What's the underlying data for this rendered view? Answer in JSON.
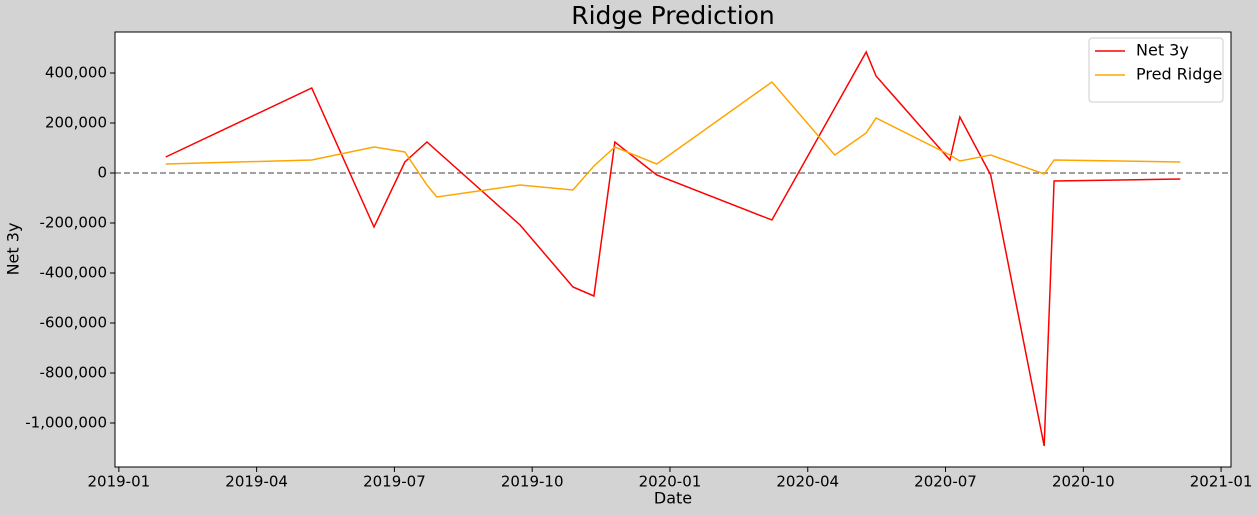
{
  "chart_data": {
    "type": "line",
    "title": "Ridge Prediction",
    "x_label": "Date",
    "y_label": "Net 3y",
    "xlim": [
      2018.993,
      2021.018
    ],
    "xticks": [
      {
        "value": 2019.0,
        "label": "2019-01"
      },
      {
        "value": 2019.25,
        "label": "2019-04"
      },
      {
        "value": 2019.5,
        "label": "2019-07"
      },
      {
        "value": 2019.75,
        "label": "2019-10"
      },
      {
        "value": 2020.0,
        "label": "2020-01"
      },
      {
        "value": 2020.25,
        "label": "2020-04"
      },
      {
        "value": 2020.5,
        "label": "2020-07"
      },
      {
        "value": 2020.75,
        "label": "2020-10"
      },
      {
        "value": 2021.0,
        "label": "2021-01"
      }
    ],
    "ylim": [
      -1176000,
      564000
    ],
    "yticks": [
      {
        "value": -1000000,
        "label": "-1,000,000"
      },
      {
        "value": -800000,
        "label": "-800,000"
      },
      {
        "value": -600000,
        "label": "-600,000"
      },
      {
        "value": -400000,
        "label": "-400,000"
      },
      {
        "value": -200000,
        "label": "-200,000"
      },
      0,
      {
        "value": 200000,
        "label": "200,000"
      },
      {
        "value": 400000,
        "label": "400,000"
      }
    ],
    "hline": 0,
    "hline_color": "#808080",
    "legend": "upper right",
    "series": [
      {
        "name": "Net 3y",
        "color": "#ff0000",
        "x": [
          2019.085,
          2019.35,
          2019.463,
          2019.519,
          2019.559,
          2019.728,
          2019.824,
          2019.862,
          2019.9,
          2019.976,
          2020.185,
          2020.356,
          2020.374,
          2020.508,
          2020.526,
          2020.582,
          2020.679,
          2020.697,
          2020.926
        ],
        "values": [
          64000,
          340000,
          -216000,
          44000,
          124000,
          -208000,
          -456000,
          -492000,
          124000,
          -8000,
          -188000,
          484000,
          388000,
          52000,
          224000,
          -8000,
          -1092000,
          -32000,
          -24000
        ]
      },
      {
        "name": "Pred Ridge",
        "color": "#ffa500",
        "x": [
          2019.085,
          2019.35,
          2019.463,
          2019.519,
          2019.559,
          2019.577,
          2019.728,
          2019.824,
          2019.862,
          2019.9,
          2019.976,
          2020.185,
          2020.299,
          2020.356,
          2020.374,
          2020.508,
          2020.526,
          2020.582,
          2020.679,
          2020.697,
          2020.926
        ],
        "values": [
          36000,
          52000,
          104000,
          84000,
          -48000,
          -96000,
          -48000,
          -68000,
          28000,
          104000,
          36000,
          364000,
          72000,
          160000,
          220000,
          72000,
          48000,
          72000,
          -4000,
          52000,
          44000
        ]
      }
    ]
  }
}
